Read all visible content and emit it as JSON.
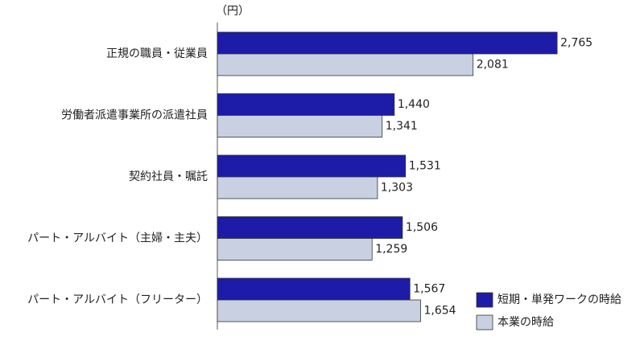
{
  "chart_data": {
    "type": "bar",
    "orientation": "horizontal",
    "unit_label": "（円）",
    "categories": [
      "正規の職員・従業員",
      "労働者派遣事業所の派遣社員",
      "契約社員・嘱託",
      "パート・アルバイト（主婦・主夫）",
      "パート・アルバイト（フリーター）"
    ],
    "series": [
      {
        "name": "短期・単発ワークの時給",
        "color": "#1c1ca8",
        "values": [
          2765,
          1440,
          1531,
          1506,
          1567
        ],
        "value_labels": [
          "2,765",
          "1,440",
          "1,531",
          "1,506",
          "1,567"
        ]
      },
      {
        "name": "本業の時給",
        "color": "#c8d0e2",
        "values": [
          2081,
          1341,
          1303,
          1259,
          1654
        ],
        "value_labels": [
          "2,081",
          "1,341",
          "1,303",
          "1,259",
          "1,654"
        ]
      }
    ],
    "xlim": [
      0,
      3000
    ],
    "legend": "lower right"
  }
}
